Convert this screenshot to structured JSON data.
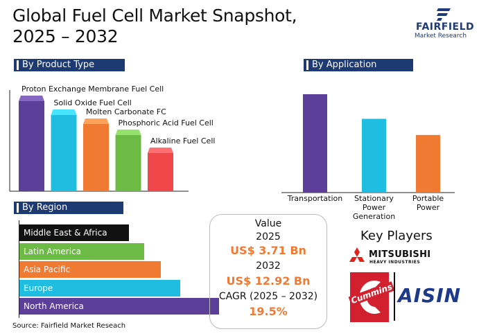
{
  "header": {
    "title_line1": "Global Fuel Cell Market Snapshot,",
    "title_line2": "2025 – 2032",
    "logo_name": "FAIRFIELD",
    "logo_sub": "Market Research"
  },
  "colors": {
    "header_bg": "#1d3a72",
    "purple": "#5b3f99",
    "cyan": "#1fbde0",
    "orange": "#f07a32",
    "green": "#6bbb45",
    "red": "#f0474a",
    "black": "#111111",
    "value_orange": "#f07a32"
  },
  "chart_data": [
    {
      "type": "bar",
      "title": "By Product Type",
      "categories": [
        "Proton Exchange Membrane Fuel Cell",
        "Solid Oxide Fuel Cell",
        "Molten Carbonate FC",
        "Phosphoric Acid Fuel Cell",
        "Alkaline Fuel Cell"
      ],
      "values": [
        130,
        110,
        97,
        81,
        55
      ],
      "colors": [
        "#5b3f99",
        "#1fbde0",
        "#f07a32",
        "#6bbb45",
        "#f0474a"
      ],
      "ylim": [
        0,
        140
      ]
    },
    {
      "type": "bar",
      "title": "By Application",
      "categories": [
        "Transportation",
        "Stationary Power Generation",
        "Portable Power"
      ],
      "category_lines": [
        [
          "Transportation"
        ],
        [
          "Stationary",
          "Power",
          "Generation"
        ],
        [
          "Portable",
          "Power"
        ]
      ],
      "values": [
        140,
        105,
        82
      ],
      "colors": [
        "#5b3f99",
        "#1fbde0",
        "#f07a32"
      ],
      "ylim": [
        0,
        140
      ]
    },
    {
      "type": "bar",
      "orientation": "horizontal",
      "title": "By Region",
      "categories": [
        "Middle East & Africa",
        "Latin America",
        "Asia Pacific",
        "Europe",
        "North America"
      ],
      "values": [
        158,
        180,
        204,
        232,
        288
      ],
      "colors": [
        "#111111",
        "#6bbb45",
        "#f07a32",
        "#1fbde0",
        "#5b3f99"
      ],
      "xlim": [
        0,
        288
      ]
    }
  ],
  "value_box": {
    "label": "Value",
    "year1": "2025",
    "value1": "US$ 3.71 Bn",
    "year2": "2032",
    "value2": "US$ 12.92 Bn",
    "cagr_label": "CAGR (2025 – 2032)",
    "cagr_value": "19.5%"
  },
  "key_players": {
    "title": "Key Players",
    "players": [
      "MITSUBISHI",
      "HEAVY INDUSTRIES",
      "Cummins",
      "AISIN"
    ]
  },
  "source": "Source: Fairfield Market Reseach"
}
